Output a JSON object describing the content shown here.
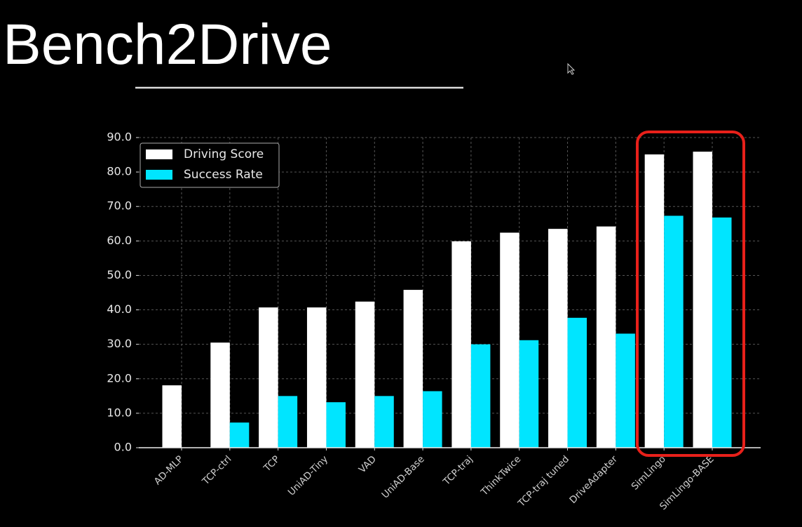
{
  "title": "Bench2Drive",
  "chart_data": {
    "type": "bar",
    "categories": [
      "AD-MLP",
      "TCP-ctrl",
      "TCP",
      "UniAD-Tiny",
      "VAD",
      "UniAD-Base",
      "TCP-traj",
      "ThinkTwice",
      "TCP-traj tuned",
      "DriveAdapter",
      "SimLingo",
      "SimLingo-BASE"
    ],
    "series": [
      {
        "name": "Driving Score",
        "color": "#ffffff",
        "values": [
          18.1,
          30.5,
          40.7,
          40.7,
          42.4,
          45.8,
          59.9,
          62.4,
          63.5,
          64.2,
          85.1,
          85.9
        ]
      },
      {
        "name": "Success Rate",
        "color": "#00e5ff",
        "values": [
          0.0,
          7.3,
          15.0,
          13.2,
          15.0,
          16.4,
          30.0,
          31.2,
          37.7,
          33.1,
          67.3,
          66.8
        ]
      }
    ],
    "ylim": [
      0,
      90
    ],
    "yticks": [
      {
        "value": 0,
        "label": "0.0"
      },
      {
        "value": 10,
        "label": "10.0"
      },
      {
        "value": 20,
        "label": "20.0"
      },
      {
        "value": 30,
        "label": "30.0"
      },
      {
        "value": 40,
        "label": "40.0"
      },
      {
        "value": 50,
        "label": "50.0"
      },
      {
        "value": 60,
        "label": "60.0"
      },
      {
        "value": 70,
        "label": "70.0"
      },
      {
        "value": 80,
        "label": "80.0"
      },
      {
        "value": 90,
        "label": "90.0"
      }
    ],
    "grid": true,
    "legend": "upper left"
  }
}
